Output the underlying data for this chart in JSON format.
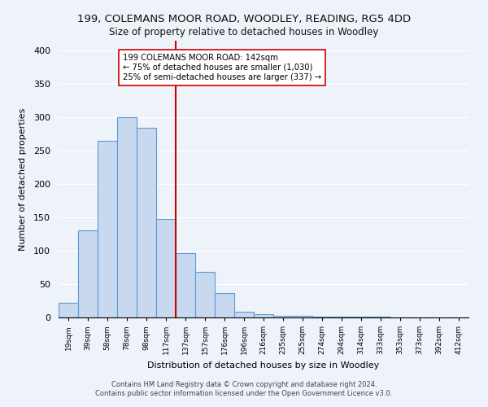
{
  "title": "199, COLEMANS MOOR ROAD, WOODLEY, READING, RG5 4DD",
  "subtitle": "Size of property relative to detached houses in Woodley",
  "xlabel": "Distribution of detached houses by size in Woodley",
  "ylabel": "Number of detached properties",
  "bar_labels": [
    "19sqm",
    "39sqm",
    "58sqm",
    "78sqm",
    "98sqm",
    "117sqm",
    "137sqm",
    "157sqm",
    "176sqm",
    "196sqm",
    "216sqm",
    "235sqm",
    "255sqm",
    "274sqm",
    "294sqm",
    "314sqm",
    "333sqm",
    "353sqm",
    "373sqm",
    "392sqm",
    "412sqm"
  ],
  "bar_heights": [
    22,
    130,
    265,
    300,
    285,
    148,
    97,
    68,
    37,
    9,
    5,
    3,
    2,
    1,
    1,
    1,
    1,
    0,
    0,
    0,
    0
  ],
  "bar_color": "#c8d8ee",
  "bar_edge_color": "#5b9bd5",
  "vline_idx": 6,
  "vline_color": "#cc0000",
  "annotation_text": "199 COLEMANS MOOR ROAD: 142sqm\n← 75% of detached houses are smaller (1,030)\n25% of semi-detached houses are larger (337) →",
  "annotation_box_color": "#ffffff",
  "annotation_box_edge": "#cc0000",
  "ylim": [
    0,
    415
  ],
  "yticks": [
    0,
    50,
    100,
    150,
    200,
    250,
    300,
    350,
    400
  ],
  "footer_line1": "Contains HM Land Registry data © Crown copyright and database right 2024.",
  "footer_line2": "Contains public sector information licensed under the Open Government Licence v3.0.",
  "bg_color": "#eef2f9",
  "plot_bg_color": "#eef2f9"
}
